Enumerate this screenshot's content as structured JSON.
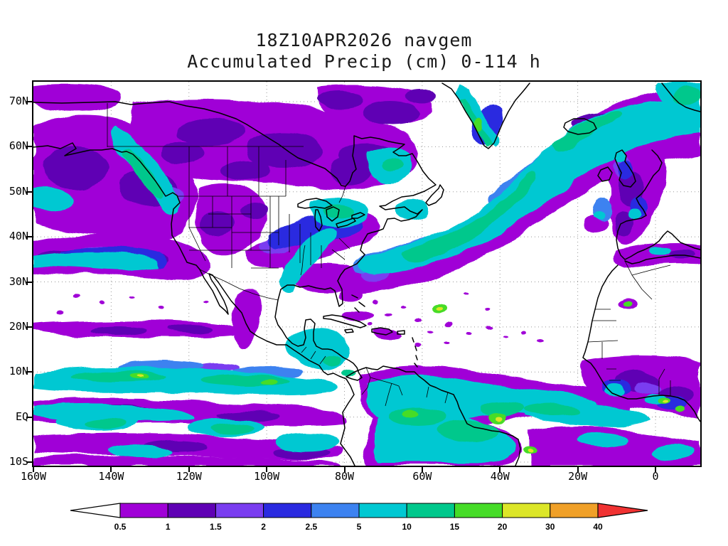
{
  "header": {
    "title_line1": "18Z10APR2026 navgem",
    "title_line2": "Accumulated Precip (cm) 0-114 h"
  },
  "axes": {
    "y_tick_labels": [
      "70N",
      "60N",
      "50N",
      "40N",
      "30N",
      "20N",
      "10N",
      "EQ",
      "10S"
    ],
    "x_tick_labels": [
      "160W",
      "140W",
      "120W",
      "100W",
      "80W",
      "60W",
      "40W",
      "20W",
      "0"
    ]
  },
  "colorbar": {
    "tick_labels": [
      "0.5",
      "1",
      "1.5",
      "2",
      "2.5",
      "5",
      "10",
      "15",
      "20",
      "30",
      "40"
    ]
  },
  "chart_data": {
    "type": "heatmap",
    "subtype": "filled-contour precipitation map over geographic basemap",
    "title": "Accumulated Precip (cm) 0-114 h",
    "model": "navgem",
    "initialization": "18Z10APR2026",
    "units": "cm",
    "forecast_window_hours": "0-114",
    "xlabel": "longitude",
    "ylabel": "latitude",
    "x_ticks": [
      "160W",
      "140W",
      "120W",
      "100W",
      "80W",
      "60W",
      "40W",
      "20W",
      "0"
    ],
    "y_ticks": [
      "70N",
      "60N",
      "50N",
      "40N",
      "30N",
      "20N",
      "10N",
      "EQ",
      "10S"
    ],
    "grid": "dotted graticule every 10 deg latitude / 20 deg longitude",
    "legend_position": "bottom horizontal colorbar with triangular under/over arrows",
    "contour_levels_cm": [
      0.5,
      1,
      1.5,
      2,
      2.5,
      5,
      10,
      15,
      20,
      30,
      40
    ],
    "palette": [
      {
        "range": "< 0.5",
        "color": "#ffffff"
      },
      {
        "range": "0.5-1",
        "color": "#a000d7"
      },
      {
        "range": "1-1.5",
        "color": "#5f00b4"
      },
      {
        "range": "1.5-2",
        "color": "#7a3df0"
      },
      {
        "range": "2-2.5",
        "color": "#2a2ae0"
      },
      {
        "range": "2.5-5",
        "color": "#3c82f0"
      },
      {
        "range": "5-10",
        "color": "#00c8d2"
      },
      {
        "range": "10-15",
        "color": "#00c88c"
      },
      {
        "range": "15-20",
        "color": "#46dc28"
      },
      {
        "range": "20-30",
        "color": "#dce628"
      },
      {
        "range": "30-40",
        "color": "#f0a028"
      },
      {
        "range": "> 40",
        "color": "#f03232"
      }
    ],
    "features": [
      "Mid-latitude Pacific storm-track band (0.5-10 cm) near 30-45N from the west edge toward the U.S. West Coast",
      "Heavy coastal precipitation (5-15 cm) along the Gulf of Alaska / British Columbia coast",
      "Widespread light precipitation (0.5-2 cm) across Canada and the Canadian Arctic, heavier (5-10 cm) over Quebec/Labrador",
      "2-10 cm swath across the central U.S., Midwest and Great Lakes",
      "North Atlantic storm track (5-15 cm) from off the U.S. East Coast northeast past Greenland and Iceland into northwest Europe",
      "Dry subtropical Atlantic and eastern Pacific ridges (< 0.5 cm) with isolated light showers",
      "ITCZ band (5-15 cm) near 5-10N across the eastern Pacific and tropical Atlantic",
      "Very heavy precipitation (10-30 cm, isolated higher) over the Amazon basin and northern South America",
      "Moderate to heavy precipitation (2-20 cm) along the Gulf of Guinea coast of West Africa",
      "Dry Sahara with one isolated convective spot",
      "1-10 cm over western Europe, the UK and Iberia"
    ]
  }
}
